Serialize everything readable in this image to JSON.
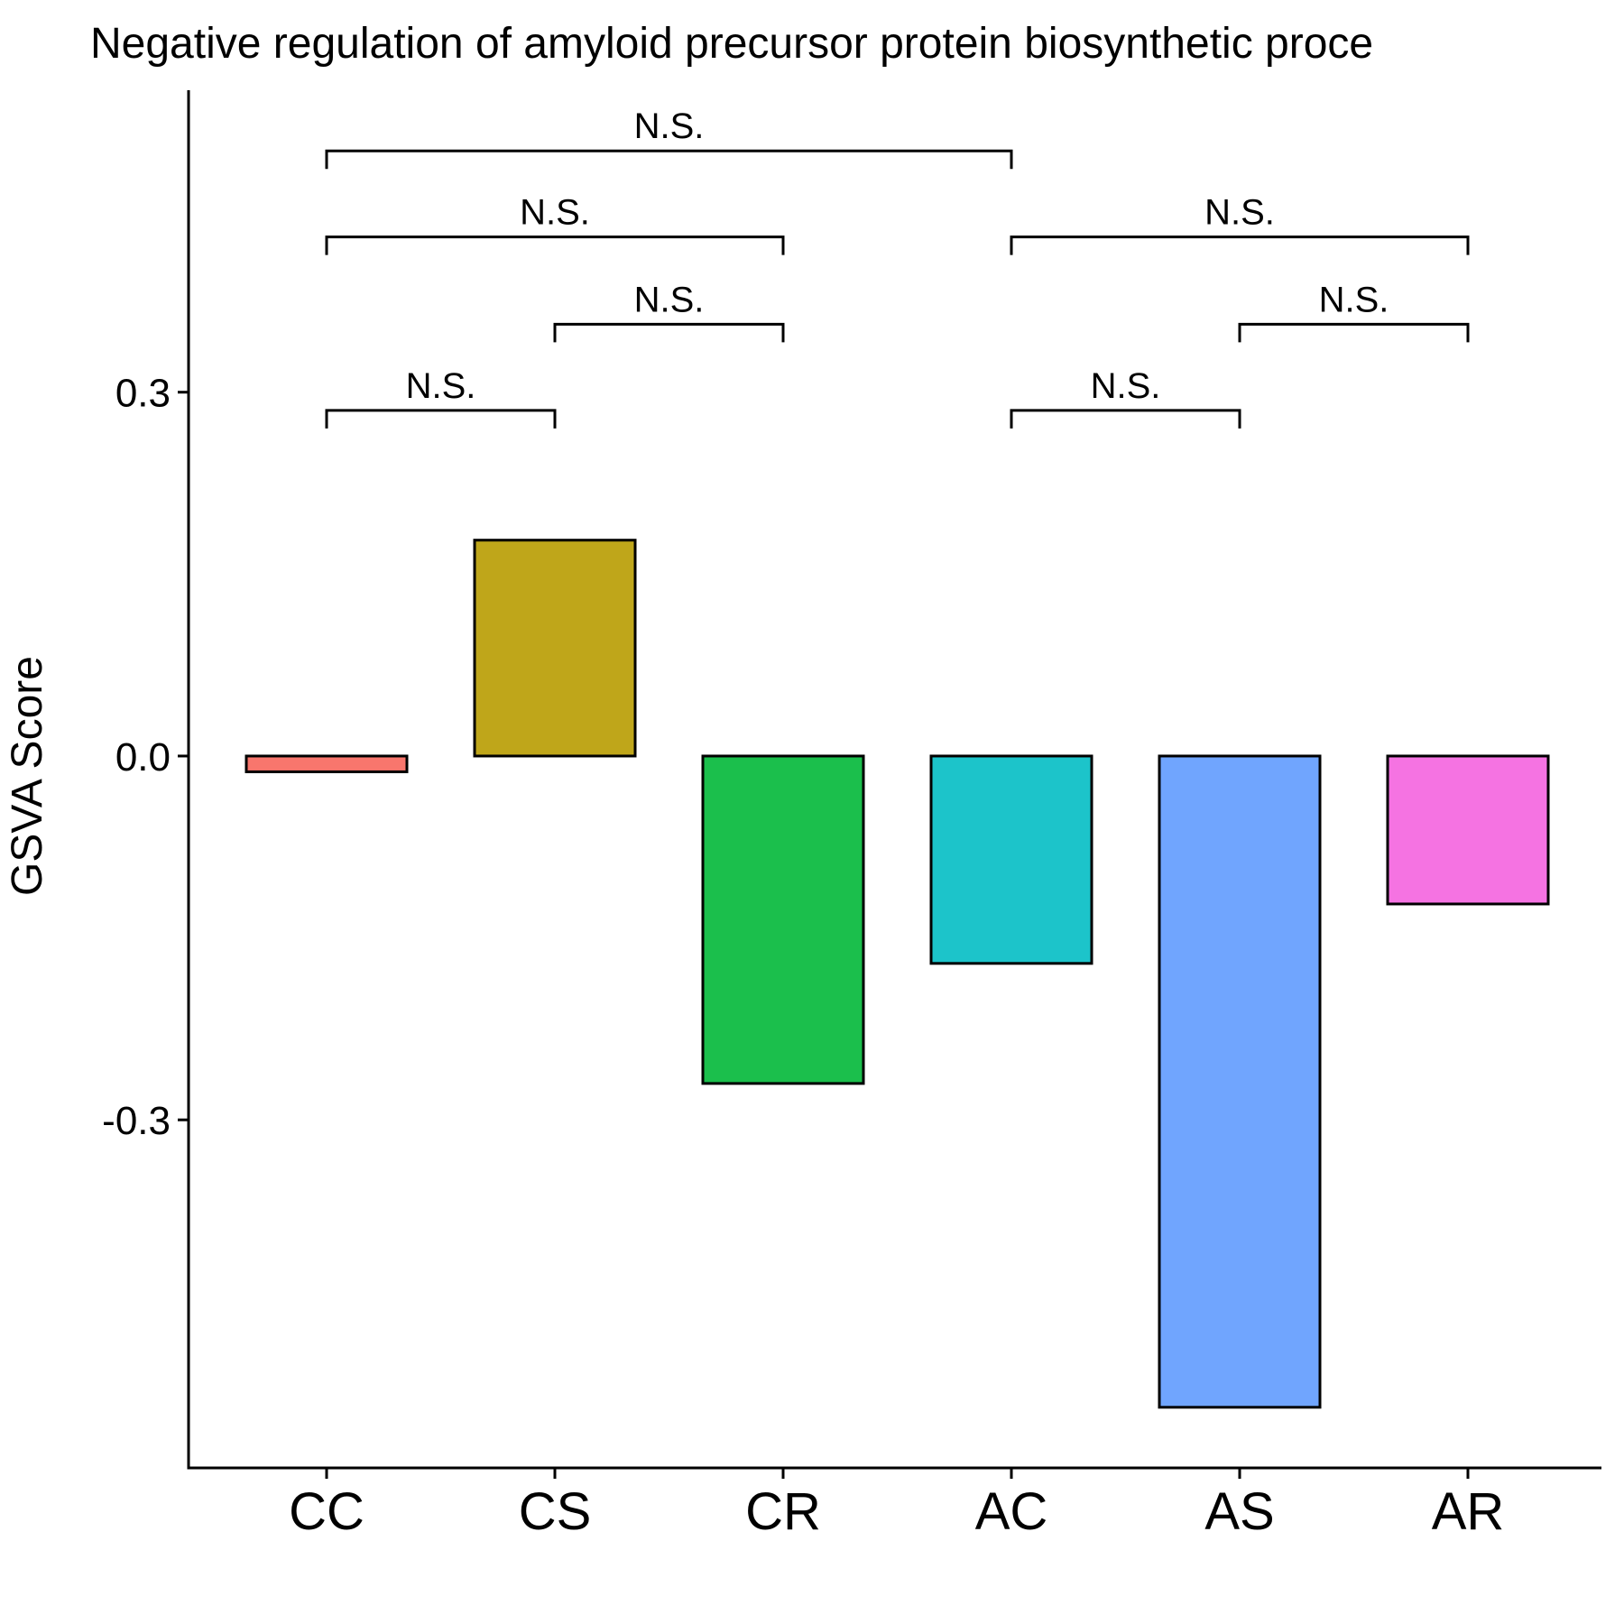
{
  "chart_data": {
    "type": "bar",
    "title": "Negative regulation of amyloid precursor protein biosynthetic proce",
    "xlabel": "",
    "ylabel": "GSVA Score",
    "categories": [
      "CC",
      "CS",
      "CR",
      "AC",
      "AS",
      "AR"
    ],
    "values": [
      -0.013,
      0.178,
      -0.27,
      -0.171,
      -0.537,
      -0.122
    ],
    "colors": [
      "#F8766D",
      "#BFA61A",
      "#1BBF4C",
      "#1CC4CA",
      "#70A5FE",
      "#F573E2"
    ],
    "ylim": [
      -0.587,
      0.549
    ],
    "yticks": [
      -0.3,
      0.0,
      0.3
    ],
    "ytick_labels": [
      "-0.3",
      "0.0",
      "0.3"
    ],
    "grid": false,
    "legend": "none",
    "comparisons": [
      {
        "from": "CC",
        "to": "CS",
        "label": "N.S.",
        "y": 0.285
      },
      {
        "from": "CS",
        "to": "CR",
        "label": "N.S.",
        "y": 0.356
      },
      {
        "from": "CC",
        "to": "CR",
        "label": "N.S.",
        "y": 0.428
      },
      {
        "from": "CC",
        "to": "AC",
        "label": "N.S.",
        "y": 0.499
      },
      {
        "from": "AC",
        "to": "AS",
        "label": "N.S.",
        "y": 0.285
      },
      {
        "from": "AS",
        "to": "AR",
        "label": "N.S.",
        "y": 0.356
      },
      {
        "from": "AC",
        "to": "AR",
        "label": "N.S.",
        "y": 0.428
      }
    ]
  }
}
